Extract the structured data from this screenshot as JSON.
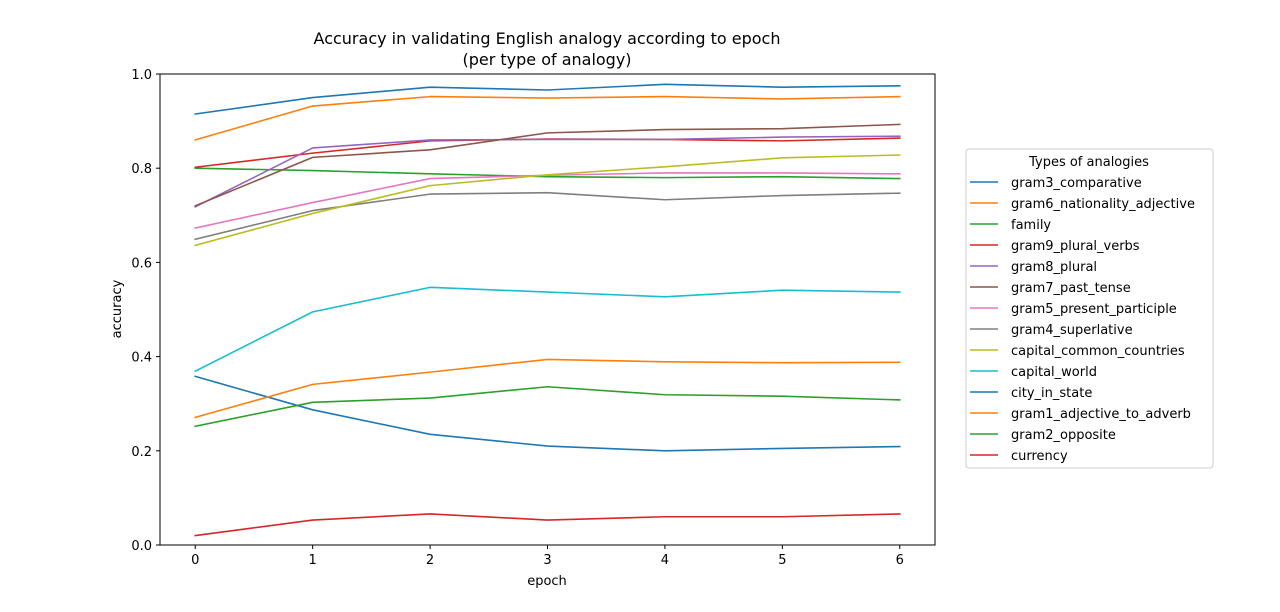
{
  "chart_data": {
    "type": "line",
    "title": "Accuracy in validating English analogy according to epoch",
    "subtitle": "(per type of analogy)",
    "xlabel": "epoch",
    "ylabel": "accuracy",
    "xlim": [
      -0.3,
      6.3
    ],
    "ylim": [
      0.0,
      1.0
    ],
    "x": [
      0,
      1,
      2,
      3,
      4,
      5,
      6
    ],
    "x_ticks": [
      "0",
      "1",
      "2",
      "3",
      "4",
      "5",
      "6"
    ],
    "y_ticks": [
      "0.0",
      "0.2",
      "0.4",
      "0.6",
      "0.8",
      "1.0"
    ],
    "y_tick_values": [
      0.0,
      0.2,
      0.4,
      0.6,
      0.8,
      1.0
    ],
    "grid": false,
    "legend": {
      "title": "Types of analogies",
      "placement": "right"
    },
    "series": [
      {
        "name": "gram3_comparative",
        "color": "#1f77b4",
        "values": [
          0.915,
          0.95,
          0.972,
          0.966,
          0.978,
          0.972,
          0.975
        ]
      },
      {
        "name": "gram6_nationality_adjective",
        "color": "#ff7f0e",
        "values": [
          0.86,
          0.932,
          0.952,
          0.949,
          0.952,
          0.947,
          0.952
        ]
      },
      {
        "name": "family",
        "color": "#2ca02c",
        "values": [
          0.8,
          0.795,
          0.788,
          0.782,
          0.78,
          0.782,
          0.778
        ]
      },
      {
        "name": "gram9_plural_verbs",
        "color": "#d62728",
        "values": [
          0.802,
          0.832,
          0.858,
          0.862,
          0.861,
          0.858,
          0.864
        ]
      },
      {
        "name": "gram8_plural",
        "color": "#9467bd",
        "values": [
          0.718,
          0.843,
          0.86,
          0.861,
          0.861,
          0.866,
          0.868
        ]
      },
      {
        "name": "gram7_past_tense",
        "color": "#8c564b",
        "values": [
          0.72,
          0.823,
          0.839,
          0.875,
          0.882,
          0.884,
          0.893
        ]
      },
      {
        "name": "gram5_present_participle",
        "color": "#e377c2",
        "values": [
          0.673,
          0.727,
          0.778,
          0.785,
          0.79,
          0.79,
          0.788
        ]
      },
      {
        "name": "gram4_superlative",
        "color": "#7f7f7f",
        "values": [
          0.649,
          0.71,
          0.745,
          0.748,
          0.733,
          0.742,
          0.747
        ]
      },
      {
        "name": "capital_common_countries",
        "color": "#bcbd22",
        "values": [
          0.636,
          0.704,
          0.763,
          0.786,
          0.803,
          0.822,
          0.828
        ]
      },
      {
        "name": "capital_world",
        "color": "#17becf",
        "values": [
          0.369,
          0.495,
          0.547,
          0.537,
          0.527,
          0.541,
          0.537
        ]
      },
      {
        "name": "city_in_state",
        "color": "#1f77b4",
        "values": [
          0.358,
          0.287,
          0.235,
          0.21,
          0.2,
          0.205,
          0.209
        ]
      },
      {
        "name": "gram1_adjective_to_adverb",
        "color": "#ff7f0e",
        "values": [
          0.271,
          0.341,
          0.367,
          0.394,
          0.389,
          0.387,
          0.388
        ]
      },
      {
        "name": "gram2_opposite",
        "color": "#2ca02c",
        "values": [
          0.252,
          0.303,
          0.312,
          0.336,
          0.319,
          0.316,
          0.308
        ]
      },
      {
        "name": "currency",
        "color": "#d62728",
        "values": [
          0.02,
          0.053,
          0.066,
          0.053,
          0.06,
          0.06,
          0.066
        ]
      }
    ]
  }
}
